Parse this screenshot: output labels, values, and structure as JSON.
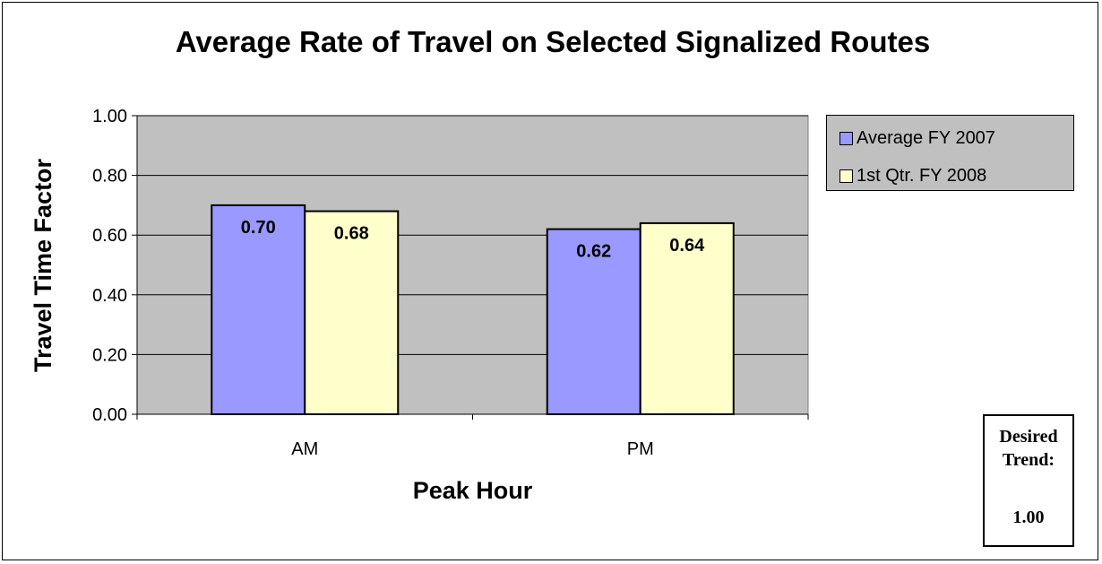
{
  "chart_data": {
    "type": "bar",
    "title": "Average Rate of Travel on Selected Signalized Routes",
    "xlabel": "Peak Hour",
    "ylabel": "Travel Time Factor",
    "categories": [
      "AM",
      "PM"
    ],
    "series": [
      {
        "name": "Average FY 2007",
        "values": [
          0.7,
          0.62
        ],
        "value_labels": [
          "0.70",
          "0.62"
        ],
        "color": "#9999ff"
      },
      {
        "name": "1st Qtr. FY 2008",
        "values": [
          0.68,
          0.64
        ],
        "value_labels": [
          "0.68",
          "0.64"
        ],
        "color": "#ffffcc"
      }
    ],
    "ylim": [
      0,
      1
    ],
    "yticks": [
      "0.00",
      "0.20",
      "0.40",
      "0.60",
      "0.80",
      "1.00"
    ],
    "grid": true,
    "plot_background": "#c0c0c0",
    "legend_position": "top-right"
  },
  "trend_box": {
    "label_line1": "Desired",
    "label_line2": "Trend:",
    "value": "1.00"
  }
}
